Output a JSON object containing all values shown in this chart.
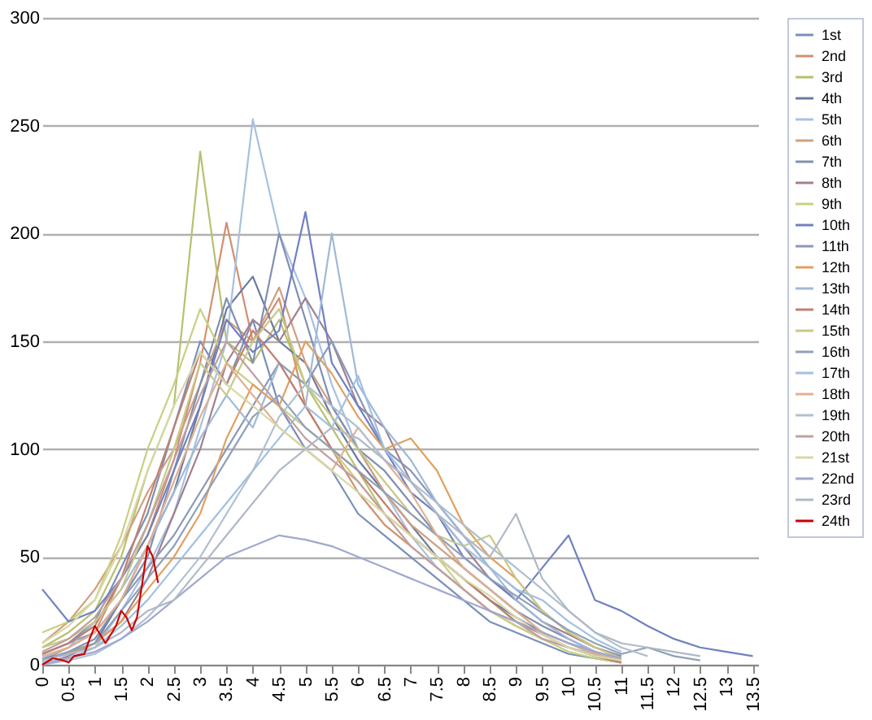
{
  "chart_data": {
    "type": "line",
    "x": [
      0,
      0.5,
      1,
      1.5,
      2,
      2.5,
      3,
      3.5,
      4,
      4.5,
      5,
      5.5,
      6,
      6.5,
      7,
      7.5,
      8,
      8.5,
      9,
      9.5,
      10,
      10.5,
      11,
      11.5,
      12,
      12.5,
      13,
      13.5
    ],
    "xlim": [
      0,
      13.6
    ],
    "xticks": [
      0,
      0.5,
      1,
      1.5,
      2,
      2.5,
      3,
      3.5,
      4,
      4.5,
      5,
      5.5,
      6,
      6.5,
      7,
      7.5,
      8,
      8.5,
      9,
      9.5,
      10,
      10.5,
      11,
      11.5,
      12,
      12.5,
      13,
      13.5
    ],
    "ylim": [
      0,
      300
    ],
    "yticks": [
      0,
      50,
      100,
      150,
      200,
      250,
      300
    ],
    "grid": "y",
    "legend": "right",
    "marker": "none",
    "line_style": "solid",
    "series": [
      {
        "name": "1st",
        "color": "#7a8fb8",
        "values": [
          5,
          10,
          20,
          45,
          70,
          110,
          150,
          130,
          160,
          120,
          100,
          90,
          70,
          60,
          50,
          40,
          30,
          20,
          15,
          10,
          5,
          3,
          1,
          null,
          null,
          null,
          null,
          null
        ]
      },
      {
        "name": "2nd",
        "color": "#d09070",
        "values": [
          2,
          8,
          15,
          40,
          60,
          95,
          140,
          205,
          150,
          170,
          120,
          100,
          80,
          65,
          55,
          45,
          35,
          25,
          18,
          12,
          8,
          4,
          2,
          null,
          null,
          null,
          null,
          null
        ]
      },
      {
        "name": "3rd",
        "color": "#b8c070",
        "values": [
          8,
          15,
          25,
          50,
          90,
          120,
          238,
          150,
          140,
          160,
          130,
          110,
          90,
          70,
          60,
          50,
          40,
          30,
          20,
          15,
          10,
          5,
          2,
          null,
          null,
          null,
          null,
          null
        ]
      },
      {
        "name": "4th",
        "color": "#6a7aa0",
        "values": [
          3,
          5,
          10,
          30,
          55,
          80,
          120,
          165,
          180,
          150,
          140,
          115,
          95,
          80,
          65,
          50,
          40,
          30,
          22,
          15,
          10,
          6,
          2,
          null,
          null,
          null,
          null,
          null
        ]
      },
      {
        "name": "5th",
        "color": "#a8c0e0",
        "values": [
          1,
          3,
          8,
          25,
          45,
          70,
          110,
          150,
          253,
          200,
          170,
          130,
          100,
          80,
          60,
          45,
          35,
          25,
          20,
          12,
          8,
          5,
          2,
          null,
          null,
          null,
          null,
          null
        ]
      },
      {
        "name": "6th",
        "color": "#d0a080",
        "values": [
          10,
          20,
          35,
          55,
          80,
          100,
          130,
          160,
          150,
          175,
          140,
          120,
          100,
          80,
          65,
          55,
          45,
          35,
          25,
          15,
          10,
          5,
          2,
          null,
          null,
          null,
          null,
          null
        ]
      },
      {
        "name": "7th",
        "color": "#8090b0",
        "values": [
          2,
          6,
          12,
          30,
          50,
          90,
          130,
          170,
          140,
          200,
          160,
          120,
          100,
          90,
          75,
          60,
          45,
          35,
          25,
          18,
          12,
          6,
          3,
          null,
          null,
          null,
          null,
          null
        ]
      },
      {
        "name": "8th",
        "color": "#a08090",
        "values": [
          0,
          4,
          10,
          20,
          40,
          70,
          100,
          140,
          160,
          150,
          170,
          150,
          120,
          110,
          85,
          70,
          55,
          40,
          30,
          20,
          14,
          8,
          4,
          null,
          null,
          null,
          null,
          null
        ]
      },
      {
        "name": "9th",
        "color": "#c8d080",
        "values": [
          15,
          20,
          30,
          60,
          100,
          130,
          165,
          140,
          130,
          120,
          110,
          100,
          85,
          70,
          60,
          50,
          35,
          25,
          18,
          12,
          6,
          3,
          1,
          null,
          null,
          null,
          null,
          null
        ]
      },
      {
        "name": "10th",
        "color": "#7080c0",
        "values": [
          35,
          20,
          25,
          40,
          60,
          90,
          120,
          160,
          145,
          155,
          210,
          140,
          120,
          100,
          80,
          70,
          50,
          40,
          30,
          45,
          60,
          30,
          25,
          18,
          12,
          8,
          6,
          4
        ]
      },
      {
        "name": "11th",
        "color": "#8898b8",
        "values": [
          5,
          10,
          15,
          30,
          45,
          60,
          80,
          100,
          120,
          140,
          130,
          150,
          125,
          100,
          90,
          75,
          60,
          45,
          35,
          25,
          15,
          8,
          4,
          null,
          null,
          null,
          null,
          null
        ]
      },
      {
        "name": "12th",
        "color": "#e0a060",
        "values": [
          2,
          5,
          10,
          20,
          35,
          50,
          70,
          105,
          130,
          120,
          150,
          135,
          115,
          100,
          105,
          90,
          65,
          50,
          40,
          25,
          15,
          8,
          3,
          null,
          null,
          null,
          null,
          null
        ]
      },
      {
        "name": "13th",
        "color": "#a0b8d8",
        "values": [
          3,
          8,
          20,
          35,
          55,
          80,
          105,
          125,
          110,
          140,
          120,
          200,
          130,
          110,
          95,
          75,
          60,
          45,
          30,
          20,
          12,
          6,
          2,
          null,
          null,
          null,
          null,
          null
        ]
      },
      {
        "name": "14th",
        "color": "#c08070",
        "values": [
          5,
          10,
          18,
          40,
          75,
          110,
          145,
          130,
          155,
          140,
          120,
          100,
          90,
          75,
          60,
          50,
          40,
          30,
          20,
          14,
          8,
          4,
          1,
          null,
          null,
          null,
          null,
          null
        ]
      },
      {
        "name": "15th",
        "color": "#c8c888",
        "values": [
          8,
          12,
          20,
          35,
          65,
          100,
          140,
          125,
          150,
          165,
          130,
          115,
          100,
          85,
          70,
          60,
          55,
          60,
          40,
          25,
          15,
          8,
          3,
          null,
          null,
          null,
          null,
          null
        ]
      },
      {
        "name": "16th",
        "color": "#90a0b8",
        "values": [
          2,
          6,
          10,
          25,
          40,
          55,
          75,
          95,
          115,
          125,
          110,
          100,
          90,
          80,
          70,
          60,
          50,
          40,
          32,
          24,
          16,
          10,
          5,
          8,
          4,
          2,
          null,
          null
        ]
      },
      {
        "name": "17th",
        "color": "#a0c0e0",
        "values": [
          1,
          3,
          8,
          18,
          30,
          45,
          60,
          75,
          90,
          105,
          120,
          110,
          134,
          100,
          85,
          70,
          55,
          45,
          35,
          30,
          20,
          12,
          6,
          null,
          null,
          null,
          null,
          null
        ]
      },
      {
        "name": "18th",
        "color": "#e0b090",
        "values": [
          4,
          8,
          15,
          30,
          55,
          85,
          115,
          140,
          125,
          110,
          100,
          90,
          110,
          95,
          80,
          60,
          45,
          35,
          25,
          15,
          10,
          5,
          2,
          null,
          null,
          null,
          null,
          null
        ]
      },
      {
        "name": "19th",
        "color": "#b0c0d0",
        "values": [
          0,
          2,
          5,
          12,
          22,
          35,
          50,
          70,
          90,
          115,
          130,
          120,
          110,
          95,
          85,
          75,
          65,
          55,
          45,
          35,
          25,
          15,
          8,
          4,
          null,
          null,
          null,
          null
        ]
      },
      {
        "name": "20th",
        "color": "#c0a0a0",
        "values": [
          6,
          12,
          22,
          40,
          65,
          95,
          125,
          150,
          135,
          120,
          105,
          95,
          85,
          70,
          55,
          45,
          35,
          25,
          20,
          12,
          8,
          4,
          2,
          null,
          null,
          null,
          null,
          null
        ]
      },
      {
        "name": "21st",
        "color": "#d8d8a8",
        "values": [
          10,
          18,
          30,
          55,
          90,
          120,
          145,
          130,
          120,
          110,
          100,
          90,
          80,
          70,
          60,
          50,
          40,
          32,
          22,
          14,
          8,
          4,
          2,
          null,
          null,
          null,
          null,
          null
        ]
      },
      {
        "name": "22nd",
        "color": "#a0a8d0",
        "values": [
          0,
          3,
          6,
          12,
          20,
          30,
          40,
          50,
          55,
          60,
          58,
          55,
          50,
          45,
          40,
          35,
          30,
          25,
          20,
          15,
          10,
          6,
          3,
          null,
          null,
          null,
          null,
          null
        ]
      },
      {
        "name": "23rd",
        "color": "#b0b8c8",
        "values": [
          2,
          5,
          8,
          15,
          25,
          30,
          45,
          60,
          75,
          90,
          100,
          110,
          105,
          95,
          85,
          70,
          60,
          50,
          70,
          40,
          25,
          15,
          10,
          8,
          6,
          4,
          null,
          null
        ]
      },
      {
        "name": "24th",
        "color": "#cc0000",
        "x": [
          0,
          0.2,
          0.4,
          0.5,
          0.6,
          0.8,
          0.9,
          1.0,
          1.2,
          1.4,
          1.5,
          1.6,
          1.7,
          1.8,
          1.9,
          2.0,
          2.1,
          2.2
        ],
        "values": [
          0,
          3,
          2,
          1,
          4,
          5,
          12,
          18,
          10,
          18,
          25,
          22,
          16,
          22,
          38,
          55,
          50,
          38
        ]
      }
    ]
  }
}
